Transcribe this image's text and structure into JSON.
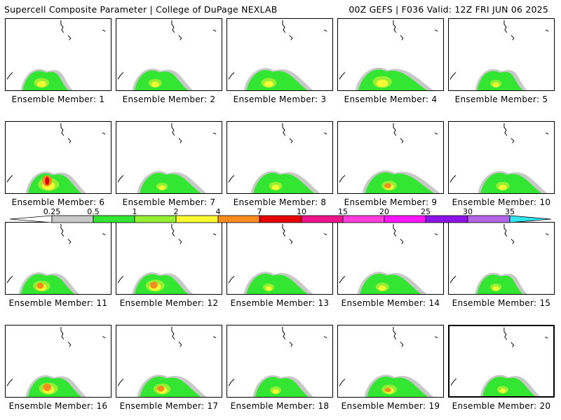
{
  "header": {
    "title": "Supercell Composite Parameter | College of DuPage NEXLAB",
    "run_info": "00Z GEFS | F036 Valid: 12Z FRI JUN 06 2025"
  },
  "colors": {
    "c0": "#c8c8c8",
    "c1": "#32e632",
    "c2": "#96f032",
    "c3": "#fafa32",
    "c4": "#fa8c1e",
    "c5": "#e60000",
    "c6": "#f0148c",
    "c7": "#ff3cdc",
    "c8": "#ff14ff",
    "c9": "#8c14e6",
    "c10": "#b464e6",
    "c11": "#32e6f0"
  },
  "colorbar": {
    "ticks": [
      "0.25",
      "0.5",
      "1",
      "2",
      "4",
      "7",
      "10",
      "15",
      "20",
      "25",
      "30",
      "35"
    ],
    "colors": [
      "#c8c8c8",
      "#32e632",
      "#96f032",
      "#fafa32",
      "#fa8c1e",
      "#e60000",
      "#f0148c",
      "#ff3cdc",
      "#ff14ff",
      "#8c14e6",
      "#b464e6",
      "#32e6f0"
    ]
  },
  "members": [
    {
      "label": "Ensemble Member: 1",
      "spread": 0.6,
      "core": 0.5,
      "hot": 0
    },
    {
      "label": "Ensemble Member: 2",
      "spread": 0.7,
      "core": 0.4,
      "hot": 0
    },
    {
      "label": "Ensemble Member: 3",
      "spread": 0.8,
      "core": 0.5,
      "hot": 0
    },
    {
      "label": "Ensemble Member: 4",
      "spread": 0.9,
      "core": 0.7,
      "hot": 0
    },
    {
      "label": "Ensemble Member: 5",
      "spread": 0.6,
      "core": 0.3,
      "hot": 0
    },
    {
      "label": "Ensemble Member: 6",
      "spread": 0.7,
      "core": 0.8,
      "hot": 1
    },
    {
      "label": "Ensemble Member: 7",
      "spread": 0.8,
      "core": 0.3,
      "hot": 0
    },
    {
      "label": "Ensemble Member: 8",
      "spread": 0.8,
      "core": 0.4,
      "hot": 0
    },
    {
      "label": "Ensemble Member: 9",
      "spread": 0.9,
      "core": 0.5,
      "hot": 0.3
    },
    {
      "label": "Ensemble Member: 10",
      "spread": 0.8,
      "core": 0.4,
      "hot": 0
    },
    {
      "label": "Ensemble Member: 11",
      "spread": 0.7,
      "core": 0.6,
      "hot": 0.4
    },
    {
      "label": "Ensemble Member: 12",
      "spread": 0.7,
      "core": 0.7,
      "hot": 0.5
    },
    {
      "label": "Ensemble Member: 13",
      "spread": 0.8,
      "core": 0.3,
      "hot": 0
    },
    {
      "label": "Ensemble Member: 14",
      "spread": 0.8,
      "core": 0.4,
      "hot": 0
    },
    {
      "label": "Ensemble Member: 15",
      "spread": 0.6,
      "core": 0.3,
      "hot": 0
    },
    {
      "label": "Ensemble Member: 16",
      "spread": 0.7,
      "core": 0.7,
      "hot": 0.6
    },
    {
      "label": "Ensemble Member: 17",
      "spread": 0.8,
      "core": 0.6,
      "hot": 0.4
    },
    {
      "label": "Ensemble Member: 18",
      "spread": 0.7,
      "core": 0.3,
      "hot": 0
    },
    {
      "label": "Ensemble Member: 19",
      "spread": 0.8,
      "core": 0.5,
      "hot": 0.2
    },
    {
      "label": "Ensemble Member: 20",
      "spread": 0.7,
      "core": 0.3,
      "hot": 0,
      "selected": true
    }
  ]
}
